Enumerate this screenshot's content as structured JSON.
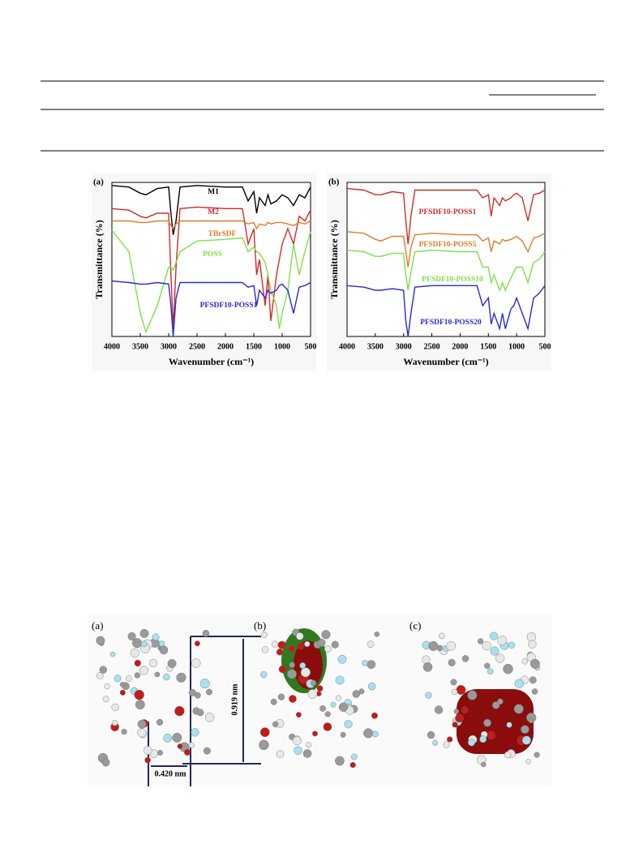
{
  "chart_data": [
    {
      "type": "line",
      "panel_label": "(a)",
      "x_label": "Wavenumber (cm⁻¹)",
      "y_label": "Transmittance (%)",
      "xlim": [
        4000,
        500
      ],
      "xticks": [
        4000,
        3500,
        3000,
        2500,
        2000,
        1500,
        1000,
        500
      ],
      "ylim": [
        0,
        100
      ],
      "x": [
        4000,
        3700,
        3500,
        3400,
        3200,
        3000,
        2960,
        2920,
        2870,
        2800,
        2500,
        2000,
        1700,
        1600,
        1500,
        1450,
        1400,
        1300,
        1250,
        1200,
        1100,
        1050,
        1000,
        900,
        800,
        700,
        600,
        500
      ],
      "series": [
        {
          "name": "M1",
          "color": "#000000",
          "values": [
            98,
            97,
            93,
            92,
            96,
            97,
            80,
            66,
            75,
            97,
            98,
            97,
            97,
            88,
            94,
            80,
            90,
            85,
            92,
            86,
            88,
            90,
            92,
            90,
            85,
            92,
            90,
            97
          ]
        },
        {
          "name": "M2",
          "color": "#d42a2a",
          "values": [
            83,
            82,
            78,
            77,
            80,
            80,
            40,
            5,
            45,
            83,
            84,
            83,
            83,
            60,
            70,
            40,
            50,
            20,
            40,
            10,
            40,
            50,
            60,
            70,
            60,
            78,
            75,
            82
          ]
        },
        {
          "name": "TBrSDF",
          "color": "#e07b2a",
          "values": [
            75,
            75,
            74,
            74,
            75,
            75,
            72,
            70,
            73,
            75,
            75,
            75,
            75,
            73,
            74,
            70,
            73,
            72,
            74,
            73,
            74,
            74,
            74,
            73,
            72,
            74,
            73,
            75
          ]
        },
        {
          "name": "POSS",
          "color": "#7de04a",
          "values": [
            69,
            55,
            15,
            3,
            20,
            45,
            45,
            43,
            48,
            55,
            62,
            63,
            64,
            55,
            58,
            55,
            54,
            48,
            40,
            30,
            20,
            5,
            15,
            30,
            60,
            40,
            55,
            68
          ]
        },
        {
          "name": "PFSDF10-POSS1",
          "color": "#2a2ad4",
          "values": [
            36,
            35,
            34,
            34,
            35,
            34,
            20,
            0,
            25,
            35,
            35,
            35,
            35,
            32,
            33,
            20,
            30,
            25,
            30,
            28,
            30,
            33,
            34,
            30,
            15,
            32,
            33,
            35
          ]
        }
      ]
    },
    {
      "type": "line",
      "panel_label": "(b)",
      "x_label": "Wavenumber (cm⁻¹)",
      "y_label": "Transmittance (%)",
      "xlim": [
        4000,
        500
      ],
      "xticks": [
        4000,
        3500,
        3000,
        2500,
        2000,
        1500,
        1000,
        500
      ],
      "ylim": [
        0,
        100
      ],
      "x": [
        4000,
        3700,
        3500,
        3400,
        3200,
        3000,
        2960,
        2920,
        2870,
        2800,
        2500,
        2000,
        1700,
        1600,
        1500,
        1450,
        1400,
        1300,
        1250,
        1200,
        1100,
        1050,
        1000,
        900,
        800,
        700,
        600,
        500
      ],
      "series": [
        {
          "name": "PFSDF10-POSS1",
          "color": "#d42a2a",
          "values": [
            96,
            95,
            92,
            92,
            94,
            93,
            75,
            60,
            78,
            95,
            95,
            95,
            95,
            90,
            92,
            78,
            90,
            85,
            90,
            88,
            90,
            92,
            93,
            90,
            75,
            92,
            93,
            95
          ]
        },
        {
          "name": "PFSDF10-POSS5",
          "color": "#e07b2a",
          "values": [
            68,
            67,
            63,
            62,
            65,
            65,
            55,
            45,
            58,
            66,
            67,
            66,
            66,
            62,
            64,
            55,
            62,
            60,
            63,
            62,
            63,
            64,
            65,
            62,
            55,
            64,
            65,
            67
          ]
        },
        {
          "name": "PFSDF10-POSS10",
          "color": "#7de04a",
          "values": [
            56,
            55,
            52,
            52,
            54,
            54,
            40,
            30,
            42,
            55,
            56,
            55,
            55,
            45,
            45,
            35,
            40,
            30,
            35,
            30,
            38,
            42,
            45,
            45,
            35,
            48,
            50,
            55
          ]
        },
        {
          "name": "PFSDF10-POSS20",
          "color": "#2a2ad4",
          "values": [
            33,
            32,
            30,
            30,
            31,
            30,
            10,
            0,
            15,
            32,
            33,
            33,
            33,
            20,
            25,
            8,
            15,
            5,
            15,
            5,
            18,
            20,
            25,
            15,
            5,
            25,
            28,
            33
          ]
        }
      ]
    }
  ],
  "figure": {
    "panels": [
      "(a)",
      "(b)",
      "(c)"
    ],
    "height_label": "0.919 nm",
    "width_label": "0.420 nm"
  }
}
